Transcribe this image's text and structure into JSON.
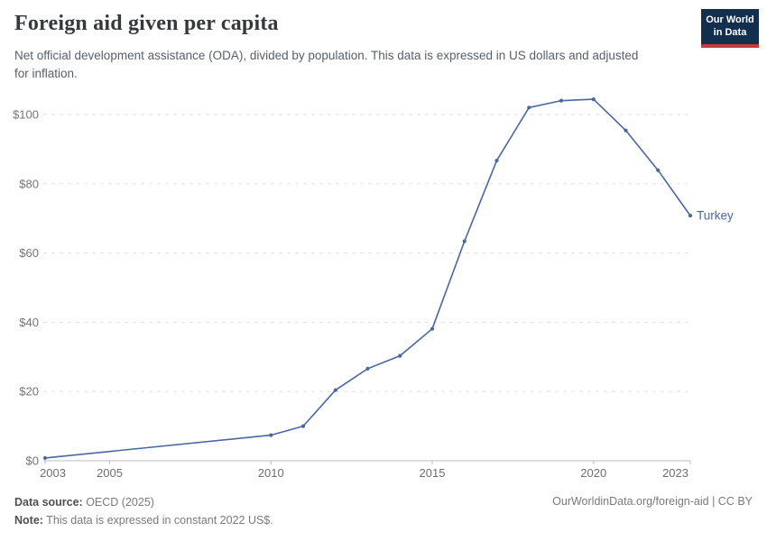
{
  "header": {
    "title": "Foreign aid given per capita",
    "subtitle": "Net official development assistance (ODA), divided by population. This data is expressed in US dollars and adjusted for inflation."
  },
  "logo": {
    "line1": "Our World",
    "line2": "in Data"
  },
  "colors": {
    "line": "#4a67a3",
    "logo_bg": "#12304e",
    "logo_accent": "#c53a3c",
    "grid": "#e0e0e0",
    "axis": "#b9bdc3",
    "axis_label": "#6e6e6e",
    "y_label": "#757575"
  },
  "chart_data": {
    "type": "line",
    "title": "Foreign aid given per capita",
    "xlabel": "",
    "ylabel": "",
    "xlim": [
      2003,
      2023
    ],
    "ylim": [
      0,
      110
    ],
    "grid": "horizontal-dashed",
    "legend_position": "end-of-line-label",
    "x_ticks": [
      2003,
      2005,
      2010,
      2015,
      2020,
      2023
    ],
    "y_ticks": [
      0,
      20,
      40,
      60,
      80,
      100
    ],
    "y_tick_prefix": "$",
    "series": [
      {
        "name": "Turkey",
        "color": "#4a67a3",
        "x": [
          2003,
          2010,
          2011,
          2012,
          2013,
          2014,
          2015,
          2016,
          2017,
          2018,
          2019,
          2020,
          2021,
          2022,
          2023
        ],
        "values": [
          0.8,
          7.4,
          10.0,
          20.4,
          26.6,
          30.3,
          38.1,
          63.4,
          86.7,
          102.0,
          104.0,
          104.4,
          95.4,
          83.9,
          70.8
        ]
      }
    ]
  },
  "footer": {
    "source_label": "Data source:",
    "source_value": " OECD (2025)",
    "note_label": "Note:",
    "note_value": " This data is expressed in constant 2022 US$.",
    "link": "OurWorldinData.org/foreign-aid | CC BY"
  }
}
